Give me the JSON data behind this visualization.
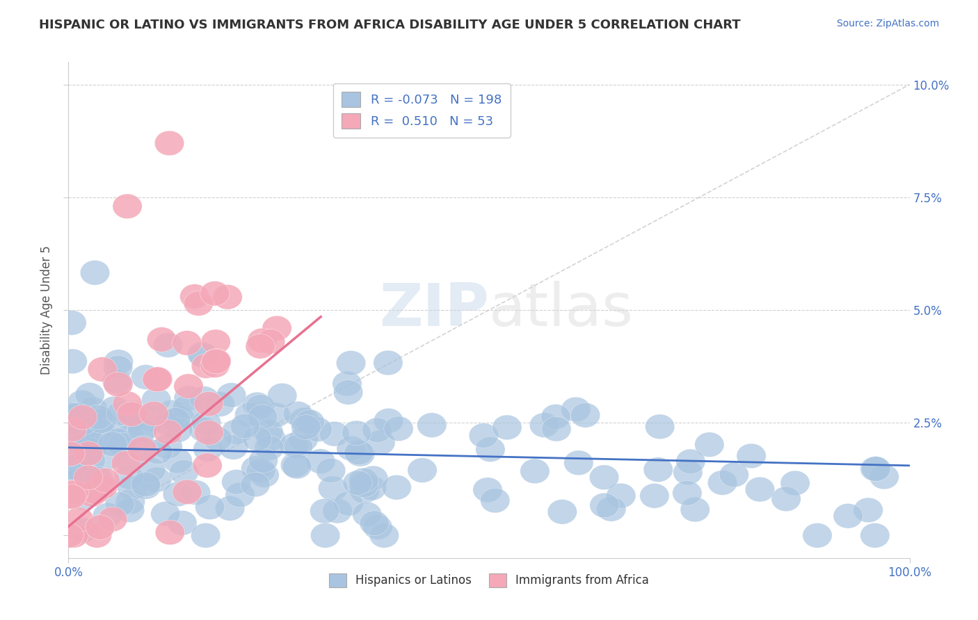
{
  "title": "HISPANIC OR LATINO VS IMMIGRANTS FROM AFRICA DISABILITY AGE UNDER 5 CORRELATION CHART",
  "source": "Source: ZipAtlas.com",
  "ylabel": "Disability Age Under 5",
  "xlim": [
    0,
    100
  ],
  "ylim": [
    -0.5,
    10.5
  ],
  "blue_R": -0.073,
  "blue_N": 198,
  "pink_R": 0.51,
  "pink_N": 53,
  "blue_color": "#a8c4e0",
  "pink_color": "#f4a8b8",
  "blue_line_color": "#4472c4",
  "pink_line_color": "#e87090",
  "ref_line_color": "#c8c8c8",
  "legend_label_blue": "Hispanics or Latinos",
  "legend_label_pink": "Immigrants from Africa",
  "watermark_zip": "ZIP",
  "watermark_atlas": "atlas",
  "background_color": "#ffffff",
  "grid_color": "#d0d0d0"
}
